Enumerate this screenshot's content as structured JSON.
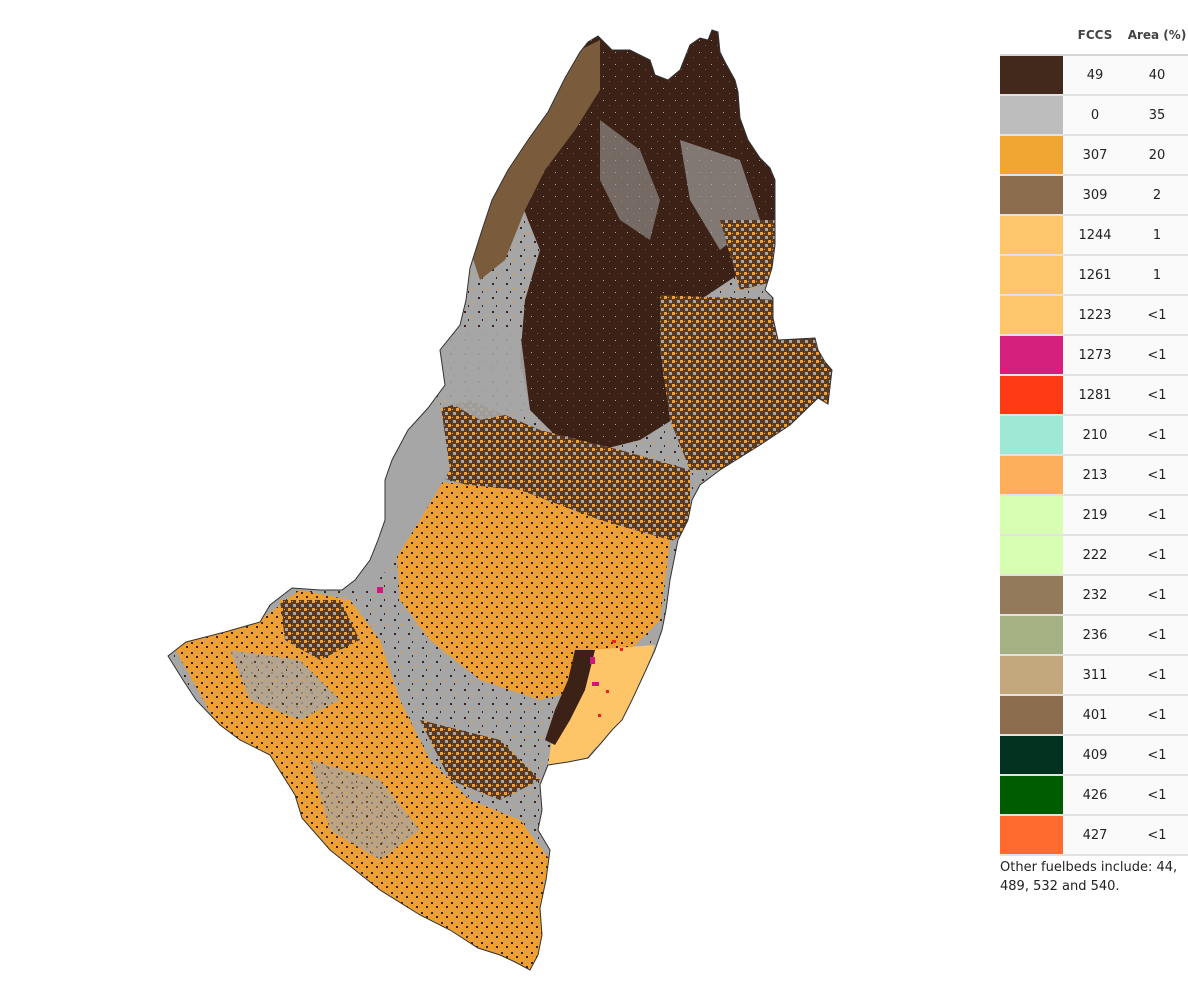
{
  "legend": {
    "headers": {
      "fccs": "FCCS",
      "area": "Area (%)"
    },
    "rows": [
      {
        "fccs": "49",
        "area": "40",
        "color": "#43291b"
      },
      {
        "fccs": "0",
        "area": "35",
        "color": "#bdbdbd"
      },
      {
        "fccs": "307",
        "area": "20",
        "color": "#f1a533"
      },
      {
        "fccs": "309",
        "area": "2",
        "color": "#8b6d4e"
      },
      {
        "fccs": "1244",
        "area": "1",
        "color": "#fec66c"
      },
      {
        "fccs": "1261",
        "area": "1",
        "color": "#fec66c"
      },
      {
        "fccs": "1223",
        "area": "<1",
        "color": "#fec66c"
      },
      {
        "fccs": "1273",
        "area": "<1",
        "color": "#d41f7c"
      },
      {
        "fccs": "1281",
        "area": "<1",
        "color": "#ff3a14"
      },
      {
        "fccs": "210",
        "area": "<1",
        "color": "#9fe8d6"
      },
      {
        "fccs": "213",
        "area": "<1",
        "color": "#feaf5c"
      },
      {
        "fccs": "219",
        "area": "<1",
        "color": "#d7feb1"
      },
      {
        "fccs": "222",
        "area": "<1",
        "color": "#d7feb1"
      },
      {
        "fccs": "232",
        "area": "<1",
        "color": "#937a5b"
      },
      {
        "fccs": "236",
        "area": "<1",
        "color": "#a5b182"
      },
      {
        "fccs": "311",
        "area": "<1",
        "color": "#c3a77d"
      },
      {
        "fccs": "401",
        "area": "<1",
        "color": "#8b6d4e"
      },
      {
        "fccs": "409",
        "area": "<1",
        "color": "#013220"
      },
      {
        "fccs": "426",
        "area": "<1",
        "color": "#005c00"
      },
      {
        "fccs": "427",
        "area": "<1",
        "color": "#ff6a2f"
      }
    ],
    "note": "Other fuelbeds include: 44, 489, 532 and 540."
  },
  "map": {
    "colors": {
      "dark_brown": "#3c2216",
      "gray": "#a6a6a6",
      "orange": "#f0a030",
      "light_orange": "#fdc468",
      "tan_brown": "#7a5c3c",
      "magenta": "#d1157a",
      "red": "#f01e1e",
      "outline": "#333333"
    }
  }
}
